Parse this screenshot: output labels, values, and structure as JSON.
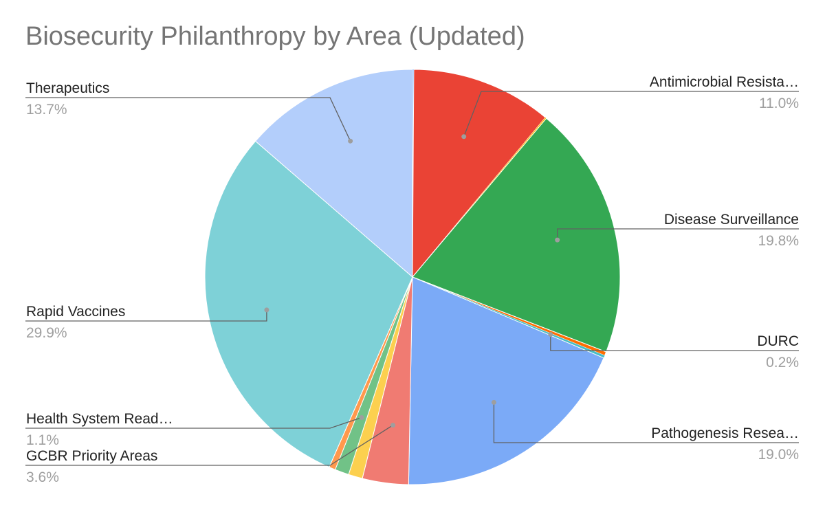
{
  "chart_data": {
    "type": "pie",
    "title": "Biosecurity Philanthropy by Area (Updated)",
    "slices": [
      {
        "label": "",
        "value": 0.1,
        "color": "#4285f4",
        "pct_label": ""
      },
      {
        "label": "Antimicrobial Resista…",
        "value": 11.0,
        "color": "#ea4335",
        "pct_label": "11.0%"
      },
      {
        "label": "",
        "value": 0.1,
        "color": "#fbbc04",
        "pct_label": ""
      },
      {
        "label": "Disease Surveillance",
        "value": 19.8,
        "color": "#34a853",
        "pct_label": "19.8%"
      },
      {
        "label": "",
        "value": 0.3,
        "color": "#ff6d01",
        "pct_label": ""
      },
      {
        "label": "DURC",
        "value": 0.2,
        "color": "#46bdc6",
        "pct_label": "0.2%"
      },
      {
        "label": "Pathogenesis Resea…",
        "value": 19.0,
        "color": "#7baaf7",
        "pct_label": "19.0%"
      },
      {
        "label": "GCBR Priority Areas",
        "value": 3.6,
        "color": "#f07b72",
        "pct_label": "3.6%"
      },
      {
        "label": "",
        "value": 1.1,
        "color": "#fcd04f",
        "pct_label": ""
      },
      {
        "label": "Health System Read…",
        "value": 1.1,
        "color": "#71c287",
        "pct_label": "1.1%"
      },
      {
        "label": "",
        "value": 0.5,
        "color": "#ff994d",
        "pct_label": ""
      },
      {
        "label": "Rapid Vaccines",
        "value": 29.9,
        "color": "#7ed1d7",
        "pct_label": "29.9%"
      },
      {
        "label": "Therapeutics",
        "value": 13.7,
        "color": "#b3cefb",
        "pct_label": "13.7%"
      }
    ]
  }
}
